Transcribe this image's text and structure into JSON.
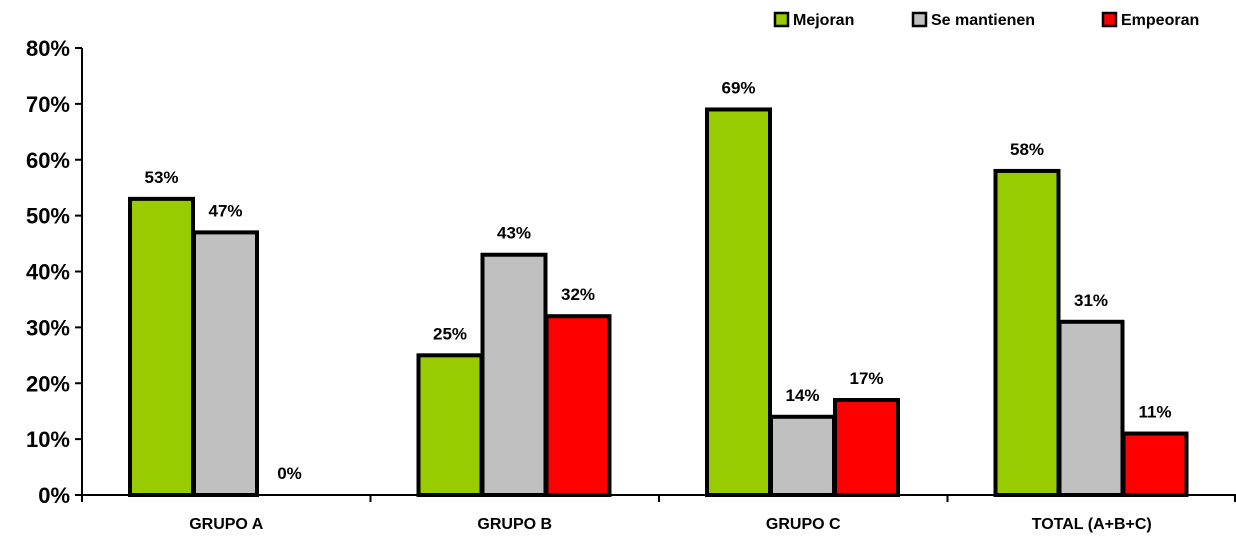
{
  "chart_data": {
    "type": "bar",
    "title": "",
    "xlabel": "",
    "ylabel": "",
    "ylim": [
      0,
      80
    ],
    "yticks": [
      0,
      10,
      20,
      30,
      40,
      50,
      60,
      70,
      80
    ],
    "tick_suffix": "%",
    "grid": false,
    "legend_position": "top-right",
    "categories": [
      "GRUPO A",
      "GRUPO B",
      "GRUPO C",
      "TOTAL (A+B+C)"
    ],
    "series": [
      {
        "name": "Mejoran",
        "color": "#99cc00",
        "values": [
          53,
          25,
          69,
          58
        ],
        "labels": [
          "53%",
          "25%",
          "69%",
          "58%"
        ]
      },
      {
        "name": "Se mantienen",
        "color": "#c0c0c0",
        "values": [
          47,
          43,
          14,
          31
        ],
        "labels": [
          "47%",
          "43%",
          "14%",
          "31%"
        ]
      },
      {
        "name": "Empeoran",
        "color": "#ff0000",
        "values": [
          0,
          32,
          17,
          11
        ],
        "labels": [
          "0%",
          "32%",
          "17%",
          "11%"
        ]
      }
    ]
  }
}
